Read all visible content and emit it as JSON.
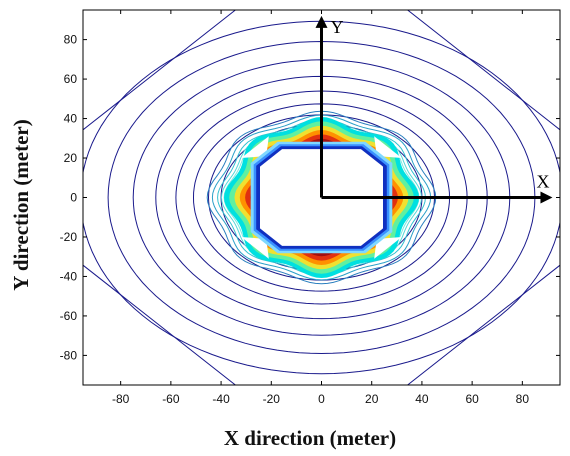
{
  "chart_data": {
    "type": "contour",
    "title": "",
    "xlabel": "X direction (meter)",
    "ylabel": "Y direction (meter)",
    "xlim": [
      -95,
      95
    ],
    "ylim": [
      -95,
      95
    ],
    "x_ticks": [
      "-80",
      "-60",
      "-40",
      "-20",
      "0",
      "20",
      "40",
      "60",
      "80"
    ],
    "y_ticks": [
      "80",
      "60",
      "40",
      "20",
      "0",
      "-20",
      "-40",
      "-60",
      "-80"
    ],
    "grid": false,
    "legend": "none",
    "arrow_labels": {
      "x": "X",
      "y": "Y"
    },
    "contours": {
      "outer_radii": [
        24,
        27,
        30,
        33,
        36,
        40,
        45,
        51,
        58,
        66,
        75,
        85,
        96
      ],
      "outer_color": "#1a1a8c",
      "hot_bands": [
        {
          "r": 37,
          "color": "#00e0e0"
        },
        {
          "r": 35,
          "color": "#60f0a0"
        },
        {
          "r": 33,
          "color": "#f0e030"
        },
        {
          "r": 31,
          "color": "#ff9000"
        },
        {
          "r": 29,
          "color": "#e03010"
        },
        {
          "r": 27,
          "color": "#a01010"
        }
      ],
      "inner_hole_halfwidth": 25,
      "inner_edge_color": "#1030c0",
      "corner_octagon_r": 128
    }
  }
}
